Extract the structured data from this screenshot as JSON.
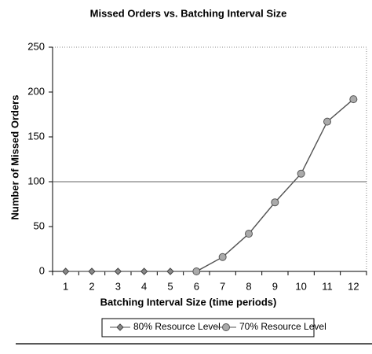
{
  "chart_data": {
    "type": "line",
    "title": "Missed Orders vs. Batching Interval Size",
    "x_label": "Batching Interval Size (time periods)",
    "y_label": "Number of Missed Orders",
    "categories": [
      "1",
      "2",
      "3",
      "4",
      "5",
      "6",
      "7",
      "8",
      "9",
      "10",
      "11",
      "12"
    ],
    "series": [
      {
        "name": "80% Resource Level",
        "marker": "diamond",
        "color": "#555555",
        "values": [
          0,
          0,
          0,
          0,
          0,
          0,
          16,
          42,
          77,
          109,
          167,
          192
        ]
      },
      {
        "name": "70% Resource Level",
        "marker": "circle",
        "color": "#555555",
        "values": [
          null,
          null,
          null,
          null,
          null,
          0,
          16,
          42,
          77,
          109,
          167,
          192
        ]
      }
    ],
    "ylim": [
      0,
      250
    ],
    "yticks": [
      0,
      50,
      100,
      150,
      200,
      250
    ],
    "hline": 100,
    "legend": "bottom"
  }
}
